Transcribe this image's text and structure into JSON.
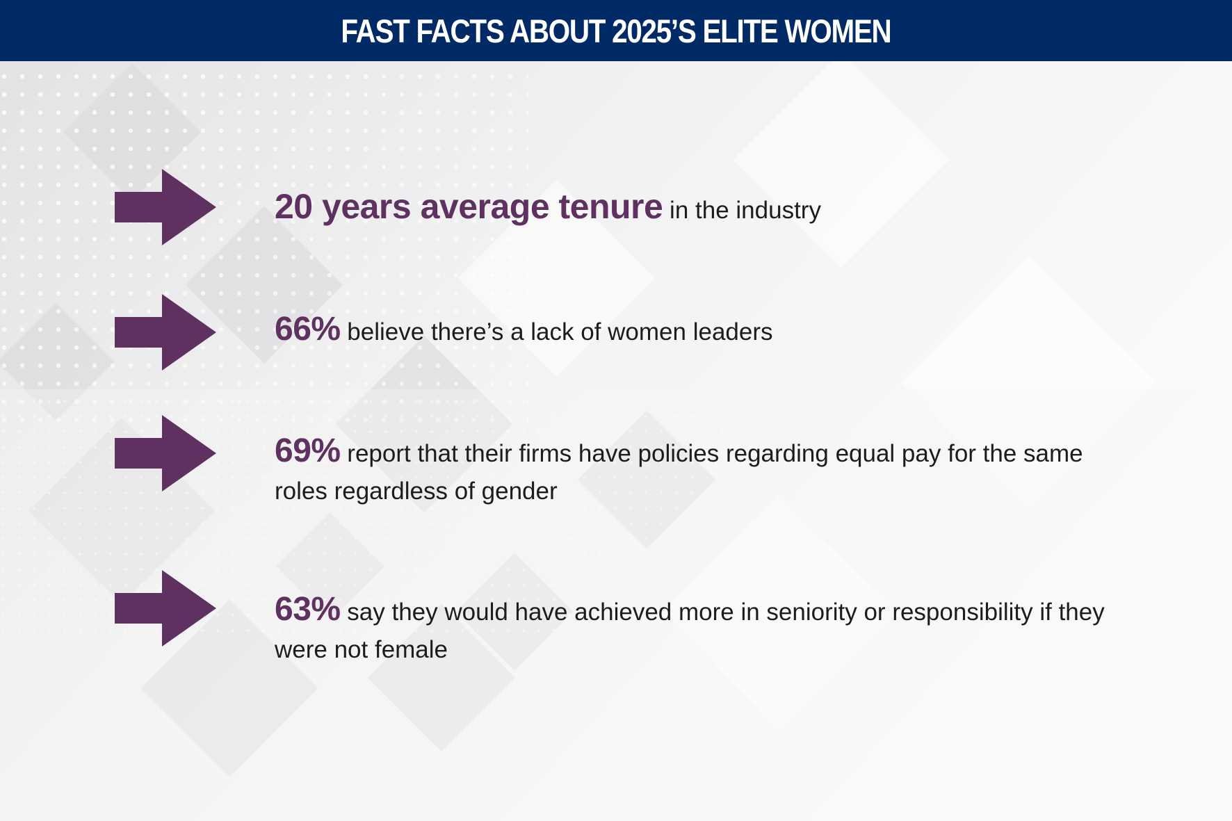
{
  "header": {
    "title": "FAST FACTS ABOUT 2025’S ELITE WOMEN"
  },
  "colors": {
    "header_bg": "#002a66",
    "accent": "#5e3160",
    "text": "#1c1c1c"
  },
  "facts": [
    {
      "icon": "arrow-right-icon",
      "highlight": "20 years average tenure",
      "text": " in the industry"
    },
    {
      "icon": "arrow-right-icon",
      "highlight": "66%",
      "text": " believe there’s a lack of women leaders"
    },
    {
      "icon": "arrow-right-icon",
      "highlight": "69%",
      "text": " report that their firms have policies regarding equal pay for the same roles regardless of gender"
    },
    {
      "icon": "arrow-right-icon",
      "highlight": "63%",
      "text": " say they would have achieved more in seniority or responsibility if they were not female"
    }
  ]
}
